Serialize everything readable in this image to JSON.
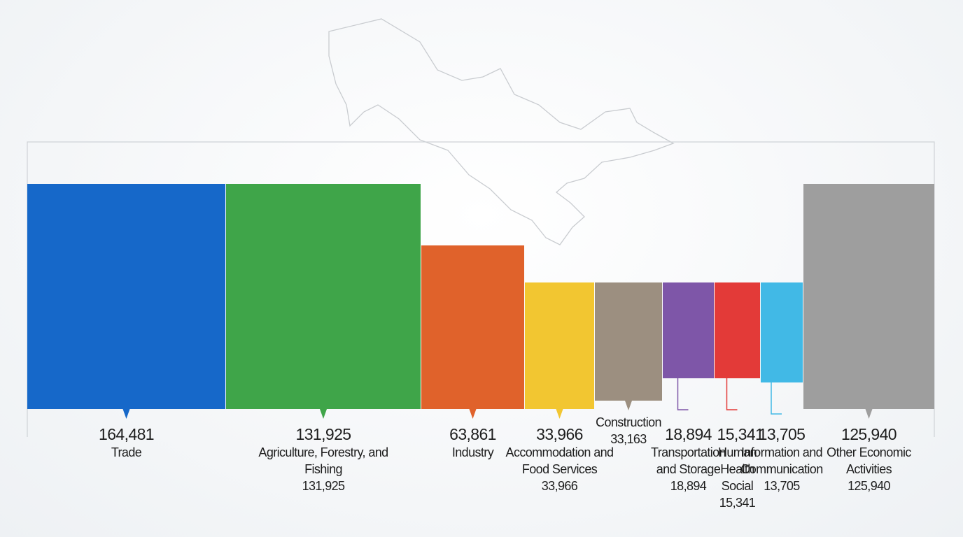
{
  "chart_data": {
    "type": "bar",
    "categories": [
      "Trade",
      "Agriculture, Forestry, and Fishing",
      "Industry",
      "Accommodation and Food Services",
      "Construction",
      "Transportation and Storage",
      "Human Health Social",
      "Information and Communication",
      "Other Economic Activities"
    ],
    "values": [
      164481,
      131925,
      63861,
      33966,
      33163,
      18894,
      15341,
      13705,
      125940
    ],
    "value_labels": [
      "164,481",
      "131,925",
      "63,861",
      "33,966",
      "33,163",
      "18,894",
      "15,341",
      "13,705",
      "125,940"
    ],
    "colors": [
      "#1668c9",
      "#3fa549",
      "#e0622b",
      "#f2c631",
      "#9c8f80",
      "#7e56a8",
      "#e33a38",
      "#41b9e6",
      "#9e9e9e"
    ]
  }
}
